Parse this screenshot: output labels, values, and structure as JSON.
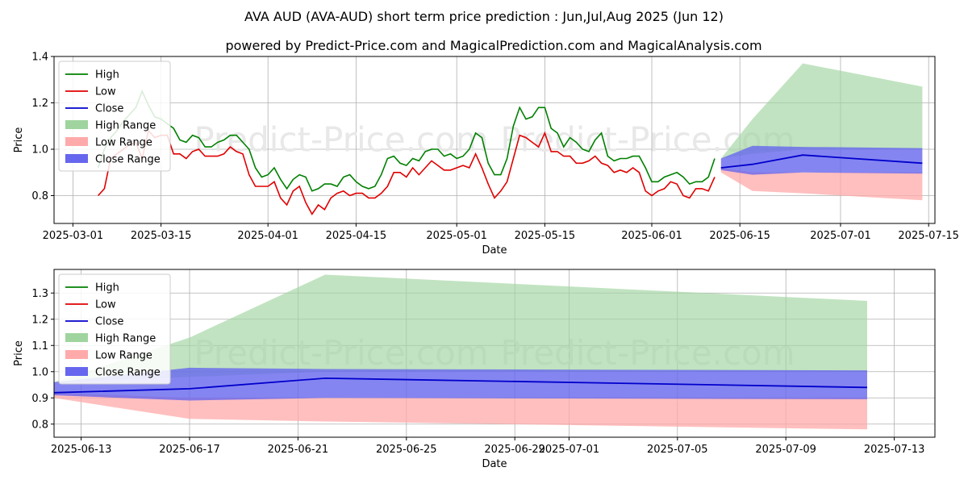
{
  "title_line1": "AVA AUD (AVA-AUD) short term price prediction : Jun,Jul,Aug 2025 (Jun 12)",
  "title_line2": "powered by Predict-Price.com and MagicalPrediction.com and MagicalAnalysis.com",
  "watermark": "Predict-Price.com",
  "colors": {
    "high": "#008000",
    "low": "#e00000",
    "close": "#0000cc",
    "high_range": "#9fd49f",
    "low_range": "#ffaaaa",
    "close_range": "#6666ee"
  },
  "legend": [
    "High",
    "Low",
    "Close",
    "High Range",
    "Low Range",
    "Close Range"
  ],
  "chart_data": [
    {
      "type": "line",
      "name": "history-and-forecast",
      "xlabel": "Date",
      "ylabel": "Price",
      "x_range_days": [
        -3,
        137
      ],
      "ylim": [
        0.68,
        1.4
      ],
      "x_ticks": [
        {
          "day": 0,
          "label": "2025-03-01"
        },
        {
          "day": 14,
          "label": "2025-03-15"
        },
        {
          "day": 31,
          "label": "2025-04-01"
        },
        {
          "day": 45,
          "label": "2025-04-15"
        },
        {
          "day": 61,
          "label": "2025-05-01"
        },
        {
          "day": 75,
          "label": "2025-05-15"
        },
        {
          "day": 92,
          "label": "2025-06-01"
        },
        {
          "day": 106,
          "label": "2025-06-15"
        },
        {
          "day": 122,
          "label": "2025-07-01"
        },
        {
          "day": 136,
          "label": "2025-07-15"
        }
      ],
      "y_ticks": [
        0.8,
        1.0,
        1.2,
        1.4
      ],
      "history_x_days": [
        4,
        5,
        6,
        7,
        8,
        9,
        10,
        11,
        12,
        13,
        14,
        15,
        16,
        17,
        18,
        19,
        20,
        21,
        22,
        23,
        24,
        25,
        26,
        27,
        28,
        29,
        30,
        31,
        32,
        33,
        34,
        35,
        36,
        37,
        38,
        39,
        40,
        41,
        42,
        43,
        44,
        45,
        46,
        47,
        48,
        49,
        50,
        51,
        52,
        53,
        54,
        55,
        56,
        57,
        58,
        59,
        60,
        61,
        62,
        63,
        64,
        65,
        66,
        67,
        68,
        69,
        70,
        71,
        72,
        73,
        74,
        75,
        76,
        77,
        78,
        79,
        80,
        81,
        82,
        83,
        84,
        85,
        86,
        87,
        88,
        89,
        90,
        91,
        92,
        93,
        94,
        95,
        96,
        97,
        98,
        99,
        100,
        101,
        102
      ],
      "history_high": [
        0.92,
        1.0,
        1.05,
        1.08,
        1.12,
        1.15,
        1.18,
        1.25,
        1.19,
        1.14,
        1.13,
        1.11,
        1.09,
        1.04,
        1.03,
        1.06,
        1.05,
        1.01,
        1.01,
        1.03,
        1.04,
        1.06,
        1.06,
        1.03,
        1.0,
        0.92,
        0.88,
        0.89,
        0.92,
        0.87,
        0.83,
        0.87,
        0.89,
        0.88,
        0.82,
        0.83,
        0.85,
        0.85,
        0.84,
        0.88,
        0.89,
        0.86,
        0.84,
        0.83,
        0.84,
        0.89,
        0.96,
        0.97,
        0.94,
        0.93,
        0.96,
        0.95,
        0.99,
        1.0,
        1.0,
        0.97,
        0.98,
        0.96,
        0.97,
        1.0,
        1.07,
        1.05,
        0.94,
        0.89,
        0.89,
        0.96,
        1.1,
        1.18,
        1.13,
        1.14,
        1.18,
        1.18,
        1.09,
        1.07,
        1.01,
        1.05,
        1.03,
        1.0,
        0.99,
        1.04,
        1.07,
        0.97,
        0.95,
        0.96,
        0.96,
        0.97,
        0.97,
        0.92,
        0.86,
        0.86,
        0.88,
        0.89,
        0.9,
        0.88,
        0.85,
        0.86,
        0.86,
        0.88,
        0.96
      ],
      "history_low": [
        0.8,
        0.83,
        0.96,
        0.98,
        1.0,
        1.02,
        1.03,
        0.96,
        1.08,
        1.05,
        1.06,
        1.06,
        0.98,
        0.98,
        0.96,
        0.99,
        1.0,
        0.97,
        0.97,
        0.97,
        0.98,
        1.01,
        0.99,
        0.98,
        0.89,
        0.84,
        0.84,
        0.84,
        0.86,
        0.79,
        0.76,
        0.82,
        0.84,
        0.77,
        0.72,
        0.76,
        0.74,
        0.79,
        0.81,
        0.82,
        0.8,
        0.81,
        0.81,
        0.79,
        0.79,
        0.81,
        0.84,
        0.9,
        0.9,
        0.88,
        0.92,
        0.89,
        0.92,
        0.95,
        0.93,
        0.91,
        0.91,
        0.92,
        0.93,
        0.92,
        0.98,
        0.92,
        0.85,
        0.79,
        0.82,
        0.86,
        0.96,
        1.06,
        1.05,
        1.03,
        1.01,
        1.07,
        0.99,
        0.99,
        0.97,
        0.97,
        0.94,
        0.94,
        0.95,
        0.97,
        0.94,
        0.93,
        0.9,
        0.91,
        0.9,
        0.92,
        0.9,
        0.82,
        0.8,
        0.82,
        0.83,
        0.86,
        0.85,
        0.8,
        0.79,
        0.83,
        0.83,
        0.82,
        0.88
      ],
      "forecast_x_days": [
        103,
        108,
        116,
        135
      ],
      "forecast_close": [
        0.92,
        0.935,
        0.975,
        0.94
      ],
      "forecast_high_range": [
        [
          0.96,
          0.96
        ],
        [
          0.98,
          1.13
        ],
        [
          1.0,
          1.37
        ],
        [
          1.0,
          1.27
        ]
      ],
      "forecast_low_range": [
        [
          0.9,
          0.92
        ],
        [
          0.82,
          0.9
        ],
        [
          0.81,
          0.9
        ],
        [
          0.78,
          0.9
        ]
      ],
      "forecast_close_range": [
        [
          0.91,
          0.96
        ],
        [
          0.89,
          1.015
        ],
        [
          0.9,
          1.01
        ],
        [
          0.895,
          1.005
        ]
      ]
    },
    {
      "type": "line",
      "name": "forecast-zoom",
      "xlabel": "Date",
      "ylabel": "Price",
      "x_range_days": [
        0,
        32.5
      ],
      "ylim": [
        0.75,
        1.39
      ],
      "x_ticks": [
        {
          "day": 1,
          "label": "2025-06-13"
        },
        {
          "day": 5,
          "label": "2025-06-17"
        },
        {
          "day": 9,
          "label": "2025-06-21"
        },
        {
          "day": 13,
          "label": "2025-06-25"
        },
        {
          "day": 17,
          "label": "2025-06-29"
        },
        {
          "day": 19,
          "label": "2025-07-01"
        },
        {
          "day": 23,
          "label": "2025-07-05"
        },
        {
          "day": 27,
          "label": "2025-07-09"
        },
        {
          "day": 31,
          "label": "2025-07-13"
        }
      ],
      "y_ticks": [
        0.8,
        0.9,
        1.0,
        1.1,
        1.2,
        1.3
      ],
      "forecast_x_days": [
        0,
        5,
        10,
        30
      ],
      "forecast_close": [
        0.92,
        0.935,
        0.975,
        0.94
      ],
      "forecast_high_range": [
        [
          0.96,
          0.96
        ],
        [
          0.98,
          1.13
        ],
        [
          1.0,
          1.37
        ],
        [
          1.0,
          1.27
        ]
      ],
      "forecast_low_range": [
        [
          0.9,
          0.92
        ],
        [
          0.82,
          0.9
        ],
        [
          0.81,
          0.9
        ],
        [
          0.78,
          0.9
        ]
      ],
      "forecast_close_range": [
        [
          0.91,
          0.96
        ],
        [
          0.89,
          1.015
        ],
        [
          0.9,
          1.01
        ],
        [
          0.895,
          1.005
        ]
      ]
    }
  ]
}
